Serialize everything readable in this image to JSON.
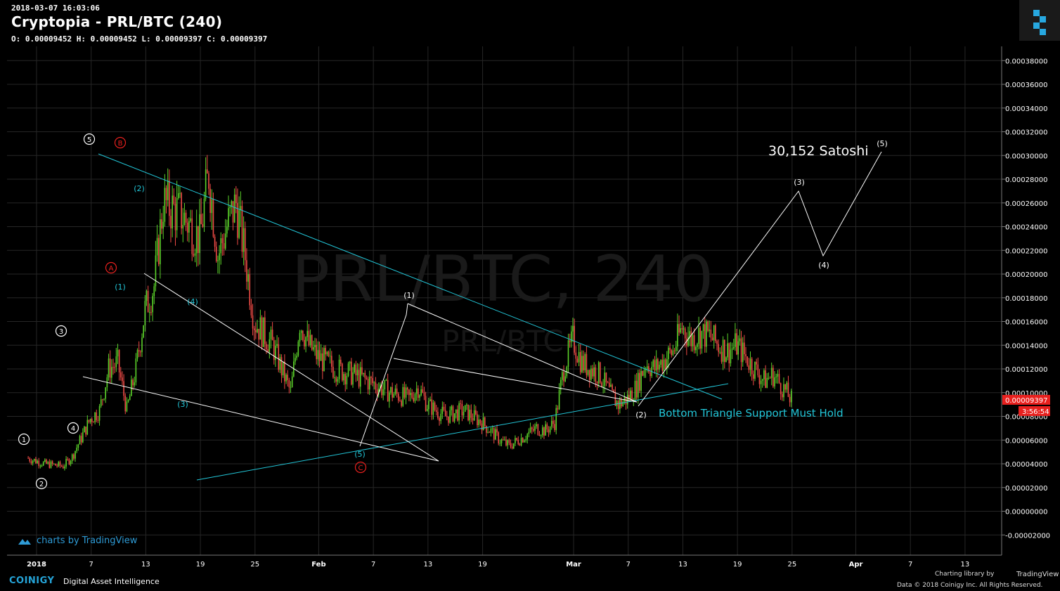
{
  "header": {
    "date": "2018-03-07 16:03:06",
    "title": "Cryptopia - PRL/BTC (240)",
    "ohlc": "O: 0.00009452 H: 0.00009452 L: 0.00009397 C: 0.00009397"
  },
  "watermark": {
    "main": "PRL/BTC, 240",
    "sub": "PRL/BTC"
  },
  "colors": {
    "up": "#5bd22a",
    "down": "#ef4b46",
    "trend": "#22c6d8",
    "wave": "#ffffff",
    "grid": "#262626",
    "price_tag": "#e8201e"
  },
  "chart_data": {
    "type": "candlestick",
    "title": "Cryptopia - PRL/BTC (240)",
    "y_ticks": [
      "0.00038000",
      "0.00036000",
      "0.00034000",
      "0.00032000",
      "0.00030000",
      "0.00028000",
      "0.00026000",
      "0.00024000",
      "0.00022000",
      "0.00020000",
      "0.00018000",
      "0.00016000",
      "0.00014000",
      "0.00012000",
      "0.00010000",
      "0.00008000",
      "0.00006000",
      "0.00004000",
      "0.00002000",
      "0.00000000",
      "-0.00002000"
    ],
    "ylim": [
      -2e-05,
      0.00038
    ],
    "x_ticks": [
      "2018",
      "7",
      "13",
      "19",
      "25",
      "Feb",
      "7",
      "13",
      "19",
      "Mar",
      "7",
      "13",
      "19",
      "25",
      "Apr",
      "7",
      "13"
    ],
    "x_tick_dates": [
      "2018-01-01",
      "2018-01-07",
      "2018-01-13",
      "2018-01-19",
      "2018-01-25",
      "2018-02-01",
      "2018-02-07",
      "2018-02-13",
      "2018-02-19",
      "2018-03-01",
      "2018-03-07",
      "2018-03-13",
      "2018-03-19",
      "2018-03-25",
      "2018-04-01",
      "2018-04-07",
      "2018-04-13"
    ],
    "price_path": [
      [
        "2017-12-31",
        4.5e-05
      ],
      [
        "2018-01-02",
        4e-05
      ],
      [
        "2018-01-04",
        3.8e-05
      ],
      [
        "2018-01-05",
        4.6e-05
      ],
      [
        "2018-01-06",
        6.2e-05
      ],
      [
        "2018-01-07",
        7.8e-05
      ],
      [
        "2018-01-08",
        8.5e-05
      ],
      [
        "2018-01-09",
        0.00012
      ],
      [
        "2018-01-10",
        0.000125
      ],
      [
        "2018-01-11",
        8.5e-05
      ],
      [
        "2018-01-12",
        0.00012
      ],
      [
        "2018-01-13",
        0.00017
      ],
      [
        "2018-01-14",
        0.00019
      ],
      [
        "2018-01-15",
        0.00026
      ],
      [
        "2018-01-16",
        0.000255
      ],
      [
        "2018-01-17",
        0.00025
      ],
      [
        "2018-01-18",
        0.00024
      ],
      [
        "2018-01-19",
        0.00023
      ],
      [
        "2018-01-20",
        0.000285
      ],
      [
        "2018-01-21",
        0.000215
      ],
      [
        "2018-01-22",
        0.00024
      ],
      [
        "2018-01-23",
        0.00026
      ],
      [
        "2018-01-24",
        0.000215
      ],
      [
        "2018-01-25",
        0.00016
      ],
      [
        "2018-01-26",
        0.00015
      ],
      [
        "2018-01-27",
        0.00014
      ],
      [
        "2018-01-28",
        0.00012
      ],
      [
        "2018-01-29",
        0.0001
      ],
      [
        "2018-01-30",
        0.00016
      ],
      [
        "2018-01-31",
        0.00014
      ],
      [
        "2018-02-01",
        0.00013
      ],
      [
        "2018-02-03",
        0.00012
      ],
      [
        "2018-02-05",
        0.000115
      ],
      [
        "2018-02-07",
        0.000108
      ],
      [
        "2018-02-09",
        0.0001
      ],
      [
        "2018-02-11",
        9.5e-05
      ],
      [
        "2018-02-12",
        0.000105
      ],
      [
        "2018-02-13",
        9e-05
      ],
      [
        "2018-02-15",
        8e-05
      ],
      [
        "2018-02-17",
        8.5e-05
      ],
      [
        "2018-02-19",
        7.5e-05
      ],
      [
        "2018-02-21",
        6e-05
      ],
      [
        "2018-02-22",
        5.5e-05
      ],
      [
        "2018-02-23",
        6e-05
      ],
      [
        "2018-02-25",
        7e-05
      ],
      [
        "2018-02-26",
        6.8e-05
      ],
      [
        "2018-02-27",
        7.5e-05
      ],
      [
        "2018-02-28",
        0.00012
      ],
      [
        "2018-03-01",
        0.000145
      ],
      [
        "2018-03-02",
        0.000125
      ],
      [
        "2018-03-03",
        0.00012
      ],
      [
        "2018-03-04",
        0.000115
      ],
      [
        "2018-03-05",
        0.0001
      ],
      [
        "2018-03-06",
        9e-05
      ],
      [
        "2018-03-07",
        9.5e-05
      ],
      [
        "2018-03-08",
        0.000105
      ],
      [
        "2018-03-09",
        0.000125
      ],
      [
        "2018-03-10",
        0.00012
      ],
      [
        "2018-03-12",
        0.000135
      ],
      [
        "2018-03-13",
        0.000155
      ],
      [
        "2018-03-14",
        0.000145
      ],
      [
        "2018-03-15",
        0.00015
      ],
      [
        "2018-03-16",
        0.000148
      ],
      [
        "2018-03-17",
        0.00014
      ],
      [
        "2018-03-18",
        0.000135
      ],
      [
        "2018-03-19",
        0.00014
      ],
      [
        "2018-03-20",
        0.00013
      ],
      [
        "2018-03-21",
        0.00012
      ],
      [
        "2018-03-22",
        0.00011
      ],
      [
        "2018-03-23",
        0.000115
      ],
      [
        "2018-03-24",
        0.000105
      ],
      [
        "2018-03-25",
        9.4e-05
      ]
    ],
    "last_price": "0.00009397",
    "countdown": "3:56:54"
  },
  "annotations": {
    "circled_black": [
      "1",
      "2",
      "3",
      "4",
      "5"
    ],
    "circled_red": [
      "A",
      "B",
      "C"
    ],
    "cyan_waves": [
      "(1)",
      "(2)",
      "(3)",
      "(4)",
      "(5)"
    ],
    "white_waves": [
      "(1)",
      "(2)",
      "(3)",
      "(4)",
      "(5)"
    ],
    "target_label": "30,152 Satoshi",
    "support_label": "Bottom Triangle Support Must Hold"
  },
  "tv_attribution": "charts by TradingView",
  "footer": {
    "brand": "COINIGY",
    "tagline": "Digital Asset Intelligence",
    "library": "Charting library by",
    "tv": "TradingView",
    "data": "Data © 2018 Coinigy Inc. All Rights Reserved."
  }
}
